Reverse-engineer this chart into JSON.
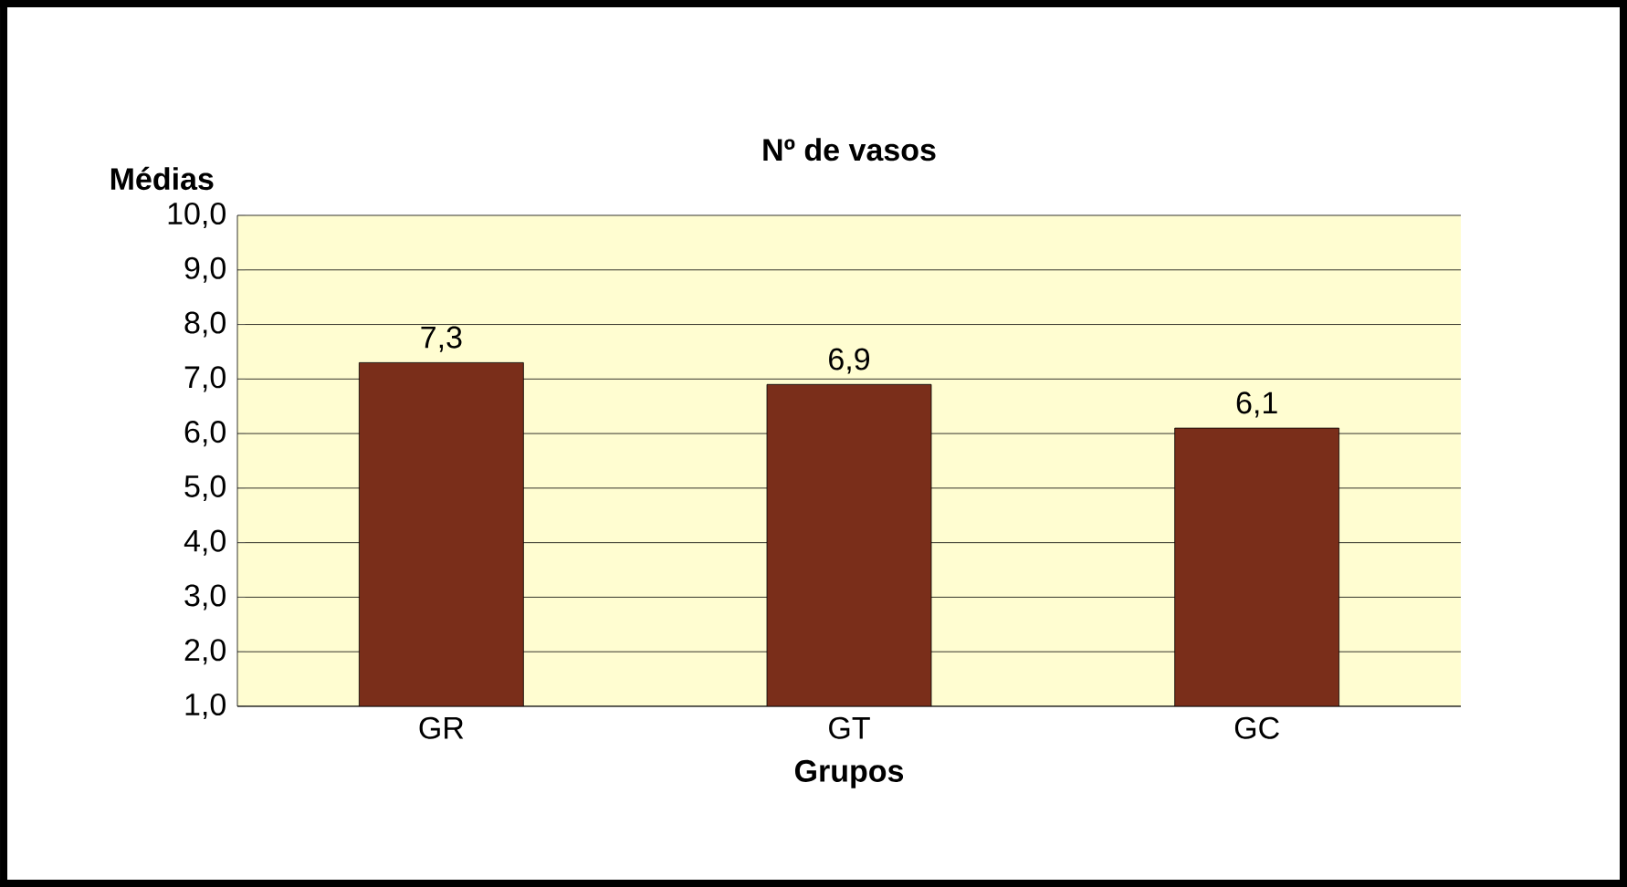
{
  "chart_data": {
    "type": "bar",
    "title": "Nº de vasos",
    "xlabel": "Grupos",
    "ylabel": "Médias",
    "categories": [
      "GR",
      "GT",
      "GC"
    ],
    "values": [
      7.3,
      6.9,
      6.1
    ],
    "value_labels": [
      "7,3",
      "6,9",
      "6,1"
    ],
    "color": "#7a2e1a",
    "ylim": [
      1,
      10
    ],
    "yticks": [
      {
        "value": 1,
        "label": "1,0"
      },
      {
        "value": 2,
        "label": "2,0"
      },
      {
        "value": 3,
        "label": "3,0"
      },
      {
        "value": 4,
        "label": "4,0"
      },
      {
        "value": 5,
        "label": "5,0"
      },
      {
        "value": 6,
        "label": "6,0"
      },
      {
        "value": 7,
        "label": "7,0"
      },
      {
        "value": 8,
        "label": "8,0"
      },
      {
        "value": 9,
        "label": "9,0"
      },
      {
        "value": 10,
        "label": "10,0"
      }
    ],
    "grid": "y"
  }
}
